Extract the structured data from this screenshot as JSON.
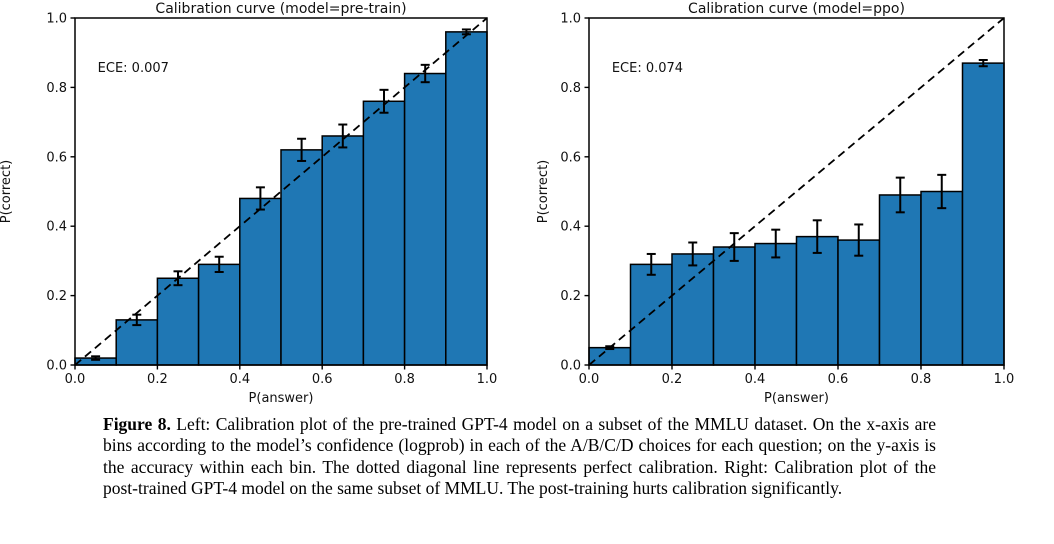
{
  "page": {
    "background": "#ffffff"
  },
  "caption": {
    "label": "Figure 8.",
    "text": "Left: Calibration plot of the pre-trained GPT-4 model on a subset of the MMLU dataset. On the x-axis are bins according to the model’s confidence (logprob) in each of the A/B/C/D choices for each question; on the y-axis is the accuracy within each bin. The dotted diagonal line represents perfect calibration. Right: Calibration plot of the post-trained GPT-4 model on the same subset of MMLU. The post-training hurts calibration significantly."
  },
  "chart_data": [
    {
      "type": "bar",
      "title": "Calibration curve (model=pre-train)",
      "ece_label": "ECE: 0.007",
      "xlabel": "P(answer)",
      "ylabel": "P(correct)",
      "xlim": [
        0.0,
        1.0
      ],
      "ylim": [
        0.0,
        1.0
      ],
      "xtick_labels": [
        "0.0",
        "0.2",
        "0.4",
        "0.6",
        "0.8",
        "1.0"
      ],
      "ytick_labels": [
        "0.0",
        "0.2",
        "0.4",
        "0.6",
        "0.8",
        "1.0"
      ],
      "grid": false,
      "bin_edges": [
        0.0,
        0.1,
        0.2,
        0.3,
        0.4,
        0.5,
        0.6,
        0.7,
        0.8,
        0.9,
        1.0
      ],
      "values": [
        0.02,
        0.13,
        0.25,
        0.29,
        0.48,
        0.62,
        0.66,
        0.76,
        0.84,
        0.96
      ],
      "errors": [
        0.005,
        0.015,
        0.02,
        0.022,
        0.032,
        0.032,
        0.033,
        0.033,
        0.025,
        0.007
      ],
      "bar_color": "#1f77b4",
      "bar_edge_color": "#000000",
      "diagonal_line": "dashed y=x perfect calibration"
    },
    {
      "type": "bar",
      "title": "Calibration curve (model=ppo)",
      "ece_label": "ECE: 0.074",
      "xlabel": "P(answer)",
      "ylabel": "P(correct)",
      "xlim": [
        0.0,
        1.0
      ],
      "ylim": [
        0.0,
        1.0
      ],
      "xtick_labels": [
        "0.0",
        "0.2",
        "0.4",
        "0.6",
        "0.8",
        "1.0"
      ],
      "ytick_labels": [
        "0.0",
        "0.2",
        "0.4",
        "0.6",
        "0.8",
        "1.0"
      ],
      "grid": false,
      "bin_edges": [
        0.0,
        0.1,
        0.2,
        0.3,
        0.4,
        0.5,
        0.6,
        0.7,
        0.8,
        0.9,
        1.0
      ],
      "values": [
        0.05,
        0.29,
        0.32,
        0.34,
        0.35,
        0.37,
        0.36,
        0.49,
        0.5,
        0.87
      ],
      "errors": [
        0.004,
        0.03,
        0.033,
        0.04,
        0.04,
        0.047,
        0.045,
        0.05,
        0.048,
        0.009
      ],
      "bar_color": "#1f77b4",
      "bar_edge_color": "#000000",
      "diagonal_line": "dashed y=x perfect calibration"
    }
  ]
}
